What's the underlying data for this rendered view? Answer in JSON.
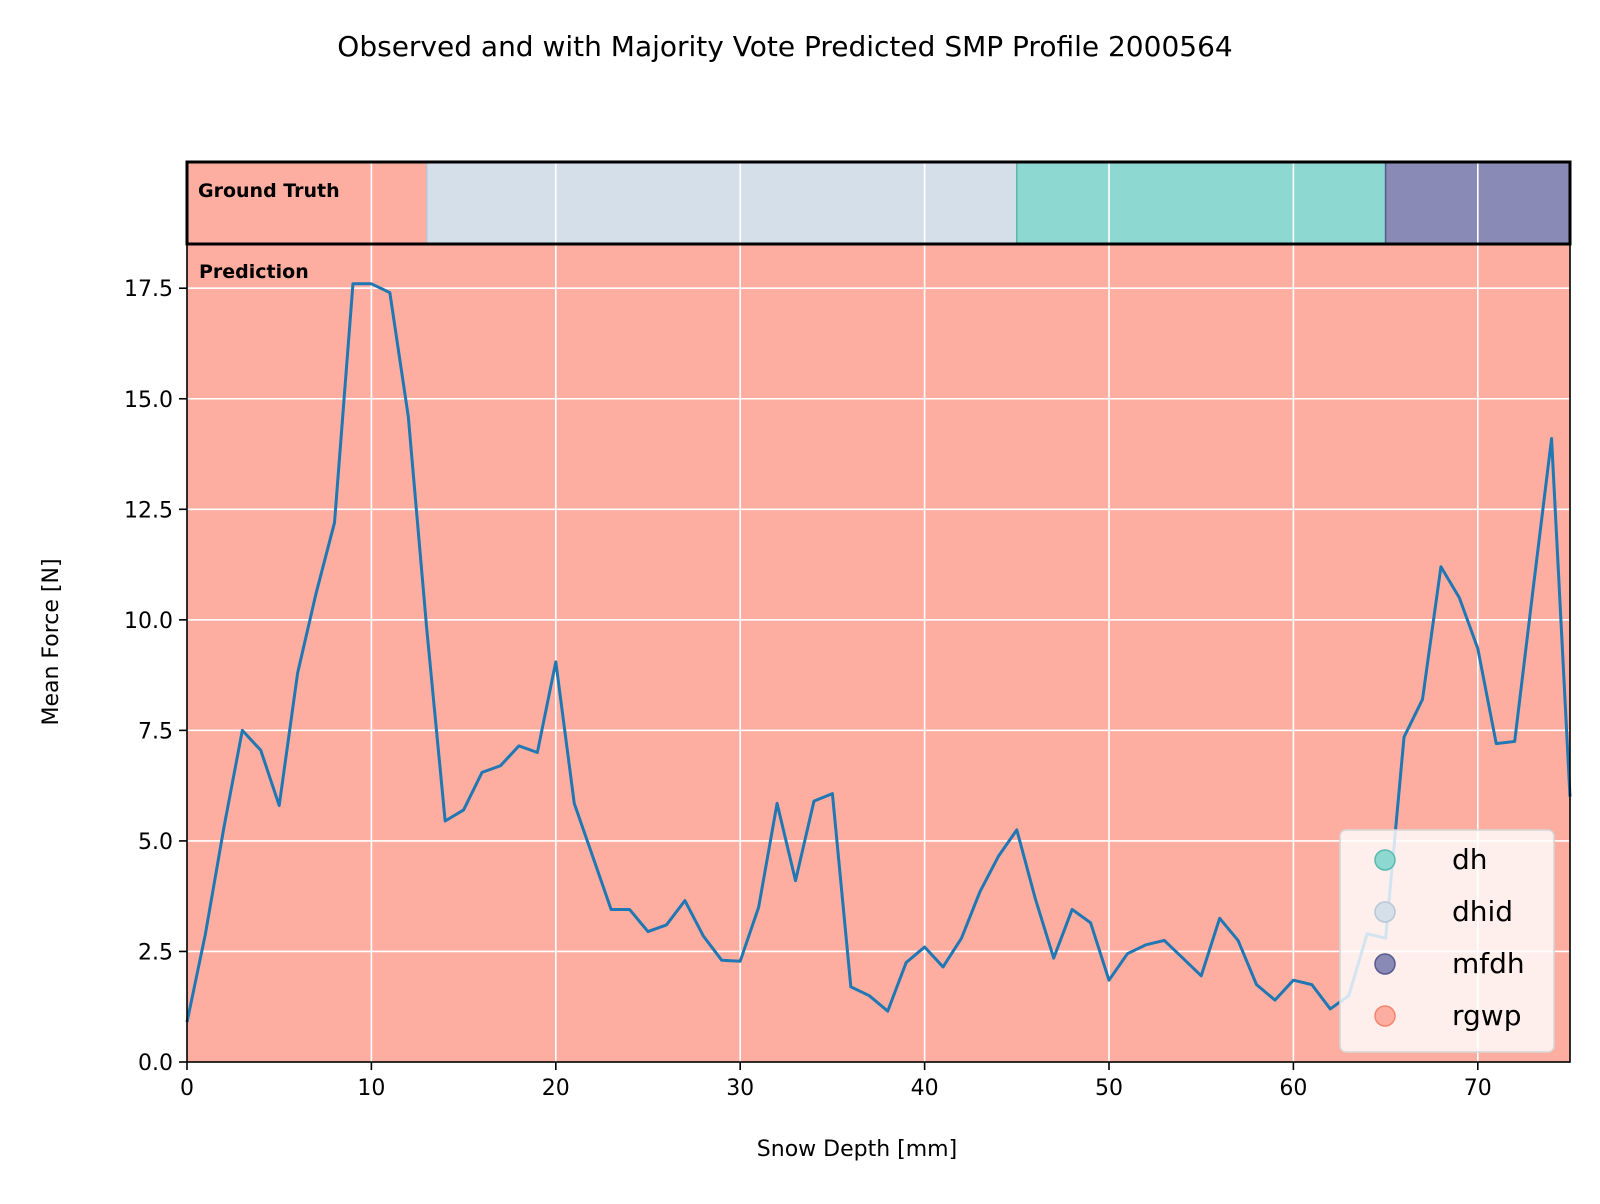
{
  "chart_data": {
    "type": "line",
    "title": "Observed and with Majority Vote Predicted SMP Profile 2000564",
    "xlabel": "Snow Depth [mm]",
    "ylabel": "Mean Force [N]",
    "xlim": [
      0,
      75
    ],
    "ylim": [
      0,
      18.5
    ],
    "x_ticks": [
      0,
      10,
      20,
      30,
      40,
      50,
      60,
      70
    ],
    "y_ticks": [
      0.0,
      2.5,
      5.0,
      7.5,
      10.0,
      12.5,
      15.0,
      17.5
    ],
    "x_tick_labels": [
      "0",
      "10",
      "20",
      "30",
      "40",
      "50",
      "60",
      "70"
    ],
    "y_tick_labels": [
      "0.0",
      "2.5",
      "5.0",
      "7.5",
      "10.0",
      "12.5",
      "15.0",
      "17.5"
    ],
    "grid": true,
    "line_color": "#1f77b4",
    "series": [
      {
        "x": [
          0,
          1,
          2,
          3,
          4,
          5,
          6,
          7,
          8,
          9,
          10,
          11,
          12,
          13,
          14,
          15,
          16,
          17,
          18,
          19,
          20,
          21,
          22,
          23,
          24,
          25,
          26,
          27,
          28,
          29,
          30,
          31,
          32,
          33,
          34,
          35,
          36,
          37,
          38,
          39,
          40,
          41,
          42,
          43,
          44,
          45,
          46,
          47,
          48,
          49,
          50,
          51,
          52,
          53,
          54,
          55,
          56,
          57,
          58,
          59,
          60,
          61,
          62,
          63,
          64,
          65,
          66,
          67,
          68,
          69,
          70,
          71,
          72,
          73,
          74,
          75
        ],
        "values": [
          0.9,
          2.9,
          5.3,
          7.5,
          7.05,
          5.8,
          8.8,
          10.6,
          12.2,
          17.6,
          17.6,
          17.4,
          14.6,
          9.8,
          5.45,
          5.7,
          6.55,
          6.7,
          7.15,
          7.0,
          9.05,
          5.85,
          4.65,
          3.45,
          3.45,
          2.95,
          3.1,
          3.65,
          2.85,
          2.3,
          2.28,
          3.5,
          5.85,
          4.1,
          5.9,
          6.07,
          1.7,
          1.5,
          1.15,
          2.25,
          2.6,
          2.15,
          2.8,
          3.85,
          4.65,
          5.25,
          3.7,
          2.35,
          3.45,
          3.15,
          1.85,
          2.45,
          2.65,
          2.75,
          2.35,
          1.95,
          3.25,
          2.75,
          1.75,
          1.4,
          1.85,
          1.75,
          1.2,
          1.5,
          2.9,
          2.8,
          7.35,
          8.2,
          11.2,
          10.5,
          9.35,
          7.2,
          7.25,
          10.7,
          14.1,
          6.0
        ]
      }
    ],
    "ground_truth": {
      "label": "Ground Truth",
      "segments": [
        {
          "start": 0,
          "end": 13,
          "class": "rgwp"
        },
        {
          "start": 13,
          "end": 45,
          "class": "dhid"
        },
        {
          "start": 45,
          "end": 65,
          "class": "dh"
        },
        {
          "start": 65,
          "end": 75,
          "class": "mfdh"
        }
      ]
    },
    "prediction": {
      "label": "Prediction",
      "segments": [
        {
          "start": 0,
          "end": 75,
          "class": "rgwp"
        }
      ]
    },
    "classes": {
      "dh": "#8dd8d0",
      "dhid": "#d5dfea",
      "mfdh": "#8a8ab6",
      "rgwp": "#fdaea0"
    },
    "class_edges": {
      "dh": "#5ab8ae",
      "dhid": "#b9c6d6",
      "mfdh": "#555a8c",
      "rgwp": "#f7846d"
    },
    "legend": {
      "placement": "lower-right",
      "entries": [
        "dh",
        "dhid",
        "mfdh",
        "rgwp"
      ]
    }
  }
}
